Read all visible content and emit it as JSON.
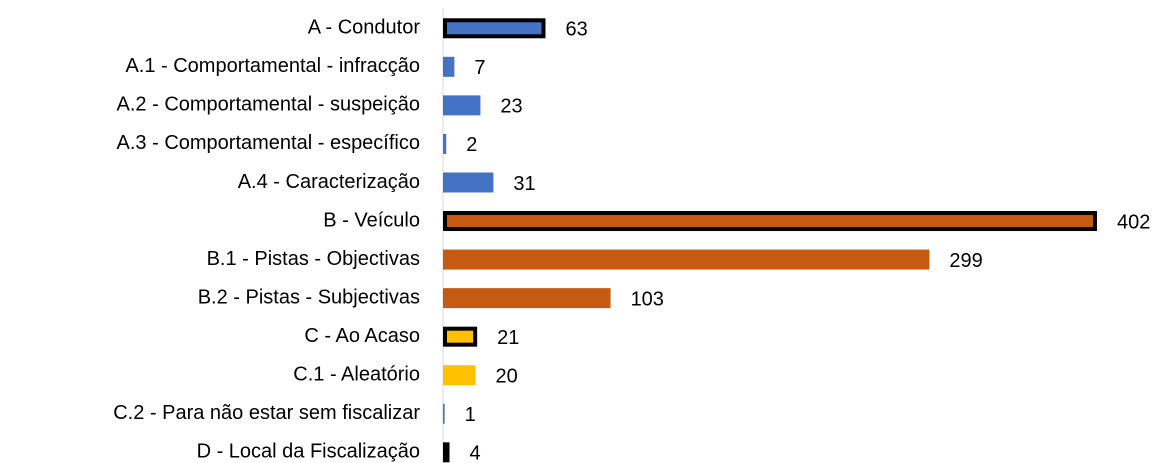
{
  "chart_data": {
    "type": "hbar",
    "categories": [
      "A - Condutor",
      "A.1 - Comportamental - infracção",
      "A.2 - Comportamental - suspeição",
      "A.3 - Comportamental - específico",
      "A.4 - Caracterização",
      "B - Veículo",
      "B.1 - Pistas - Objectivas",
      "B.2 - Pistas - Subjectivas",
      "C - Ao Acaso",
      "C.1 - Aleatório",
      "C.2 - Para não estar sem fiscalizar",
      "D - Local da Fiscalização"
    ],
    "values": [
      63,
      7,
      23,
      2,
      31,
      402,
      299,
      103,
      21,
      20,
      1,
      4
    ],
    "colors": [
      "#4472c4",
      "#4472c4",
      "#4472c4",
      "#4472c4",
      "#4472c4",
      "#c55a11",
      "#c55a11",
      "#c55a11",
      "#ffc000",
      "#ffc000",
      "#4472c4",
      "#000000"
    ],
    "outlined": [
      true,
      false,
      false,
      false,
      false,
      true,
      false,
      false,
      true,
      false,
      false,
      true
    ],
    "xlim": [
      0,
      402
    ]
  }
}
